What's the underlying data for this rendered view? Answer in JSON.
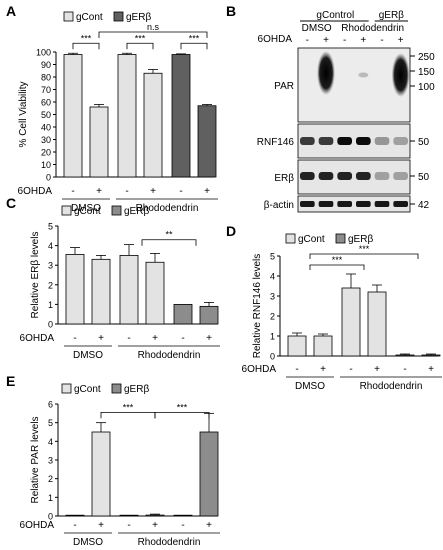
{
  "legend": {
    "control": "gCont",
    "knockdown": "gERβ",
    "control_alt": "gControl"
  },
  "treatment_label": "6OHDA",
  "treatment_signs": [
    "-",
    "+",
    "-",
    "+",
    "-",
    "+"
  ],
  "groups": [
    "DMSO",
    "Rhododendrin"
  ],
  "colors": {
    "control": "#e3e3e3",
    "knockdown": "#606060",
    "knockdown_light": "#8c8c8c",
    "edge": "#000000"
  },
  "chart_data": [
    {
      "panel": "A",
      "type": "bar",
      "ylabel": "% Cell Viability",
      "ylim": [
        0,
        100
      ],
      "yticks": [
        "0",
        "10",
        "20",
        "30",
        "40",
        "50",
        "60",
        "70",
        "80",
        "90",
        "100"
      ],
      "categories": [
        "DMSO -",
        "DMSO +",
        "Rhododendrin gCont -",
        "Rhododendrin gCont +",
        "Rhododendrin gERβ -",
        "Rhododendrin gERβ +"
      ],
      "values": [
        98,
        56,
        98,
        83,
        98,
        57
      ],
      "errors": [
        1,
        2,
        1,
        3,
        0.5,
        1
      ],
      "fill": [
        "control",
        "control",
        "control",
        "control",
        "knockdown",
        "knockdown"
      ],
      "sig": [
        {
          "label": "***",
          "from": 0,
          "to": 1,
          "level": 107
        },
        {
          "label": "***",
          "from": 2,
          "to": 3,
          "level": 107
        },
        {
          "label": "***",
          "from": 4,
          "to": 5,
          "level": 107
        },
        {
          "label": "n.s",
          "from": 1,
          "to": 5,
          "level": 116
        }
      ]
    },
    {
      "panel": "C",
      "type": "bar",
      "ylabel": "Relative ERβ levels",
      "ylim": [
        0,
        5
      ],
      "yticks": [
        "0",
        "1",
        "2",
        "3",
        "4",
        "5"
      ],
      "values": [
        3.55,
        3.3,
        3.5,
        3.15,
        1.0,
        0.9
      ],
      "errors": [
        0.35,
        0.2,
        0.55,
        0.45,
        0.0,
        0.2
      ],
      "fill": [
        "control",
        "control",
        "control",
        "control",
        "knockdown_light",
        "knockdown_light"
      ],
      "sig": [
        {
          "label": "**",
          "from": 2.5,
          "to": 4.5,
          "level": 4.3
        }
      ]
    },
    {
      "panel": "D",
      "type": "bar",
      "ylabel": "Relative RNF146 levels",
      "ylim": [
        0,
        5
      ],
      "yticks": [
        "0",
        "1",
        "2",
        "3",
        "4",
        "5"
      ],
      "values": [
        1.0,
        1.0,
        3.4,
        3.2,
        0.05,
        0.05
      ],
      "errors": [
        0.15,
        0.1,
        0.7,
        0.35,
        0.05,
        0.05
      ],
      "fill": [
        "control",
        "control",
        "control",
        "control",
        "knockdown_light",
        "knockdown_light"
      ],
      "sig": [
        {
          "label": "***",
          "from": 0.5,
          "to": 2.5,
          "level": 4.55
        },
        {
          "label": "***",
          "from": 0.5,
          "to": 4.5,
          "level": 5.1
        }
      ]
    },
    {
      "panel": "E",
      "type": "bar",
      "ylabel": "Relative PAR levels",
      "ylim": [
        0,
        6
      ],
      "yticks": [
        "0",
        "1",
        "2",
        "3",
        "4",
        "5",
        "6"
      ],
      "values": [
        0.0,
        4.5,
        0.0,
        0.05,
        0.0,
        4.5
      ],
      "errors": [
        0,
        0.5,
        0,
        0.05,
        0,
        1.0
      ],
      "fill": [
        "control",
        "control",
        "control",
        "control",
        "knockdown_light",
        "knockdown_light"
      ],
      "sig": [
        {
          "label": "***",
          "from": 1,
          "to": 3,
          "level": 5.55
        },
        {
          "label": "***",
          "from": 3,
          "to": 5,
          "level": 5.55
        }
      ]
    }
  ],
  "blot": {
    "header_control": "gControl",
    "header_knockdown": "gERβ",
    "header_dmso": "DMSO",
    "header_rhodo": "Rhododendrin",
    "rows": [
      {
        "label": "PAR",
        "markers": [
          "250",
          "150",
          "100"
        ]
      },
      {
        "label": "RNF146",
        "markers": [
          "50"
        ]
      },
      {
        "label": "ERβ",
        "markers": [
          "50"
        ]
      },
      {
        "label": "β-actin",
        "markers": [
          "42"
        ]
      }
    ]
  },
  "panel_letters": [
    "A",
    "B",
    "C",
    "D",
    "E"
  ]
}
